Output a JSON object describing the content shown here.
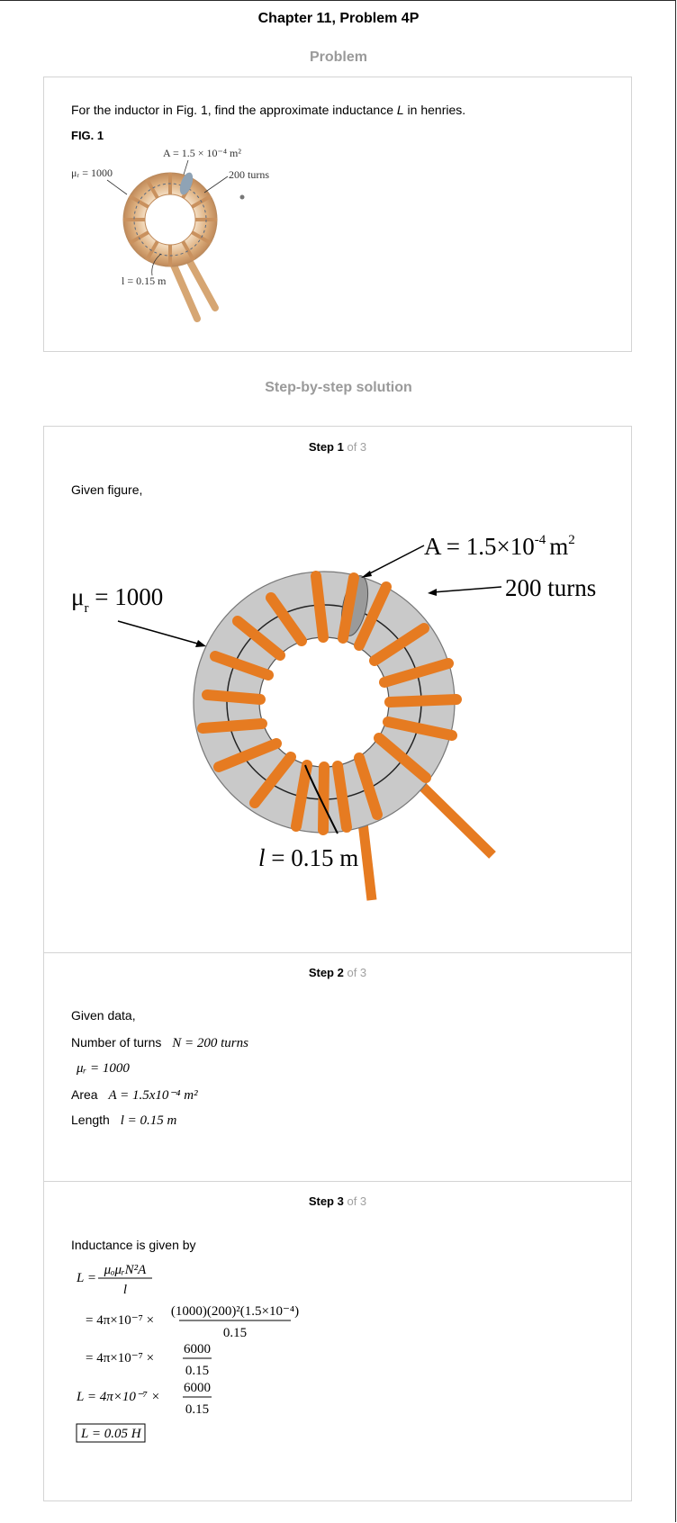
{
  "chapter_title": "Chapter 11, Problem 4P",
  "problem_heading": "Problem",
  "problem": {
    "text_before": "For the inductor in Fig. 1, find the approximate inductance ",
    "text_var": "L",
    "text_after": " in henries.",
    "fig_label": "FIG. 1",
    "fig_small": {
      "area_label": "A = 1.5 × 10⁻⁴ m²",
      "mu_label": "μᵣ = 1000",
      "turns_label": "200 turns",
      "length_label": "l = 0.15 m"
    }
  },
  "solution_heading": "Step-by-step solution",
  "steps": [
    {
      "number": "Step 1",
      "of": "of 3",
      "intro": "Given figure,",
      "figure": {
        "area_label": "A = 1.5×10",
        "area_exp": "-4",
        "area_unit": "m",
        "area_unit_exp": "2",
        "mu_label": "μ",
        "mu_sub": "r",
        "mu_value": " = 1000",
        "turns_label": "200 turns",
        "length_var": "l",
        "length_value": " = 0.15 m"
      }
    },
    {
      "number": "Step 2",
      "of": "of 3",
      "intro": "Given data,",
      "items": [
        {
          "label": "Number of turns",
          "expr": "N = 200 turns"
        },
        {
          "label": "",
          "expr": "μᵣ = 1000"
        },
        {
          "label": "Area",
          "expr": "A = 1.5x10⁻⁴ m²"
        },
        {
          "label": "Length",
          "expr": "l = 0.15 m"
        }
      ]
    },
    {
      "number": "Step 3",
      "of": "of 3",
      "intro": "Inductance is given by",
      "eq1_lhs": "L =",
      "eq1_num": "μₒμᵣN²A",
      "eq1_den": "l",
      "eq2_lhs": "= 4π×10⁻⁷ ×",
      "eq2_num": "(1000)(200)²(1.5×10⁻⁴)",
      "eq2_den": "0.15",
      "eq3_lhs": "= 4π×10⁻⁷ ×",
      "eq3_num": "6000",
      "eq3_den": "0.15",
      "eq4_lhs": "L = 4π×10⁻⁷ ×",
      "eq4_num": "6000",
      "eq4_den": "0.15",
      "answer": "L = 0.05 H"
    }
  ]
}
